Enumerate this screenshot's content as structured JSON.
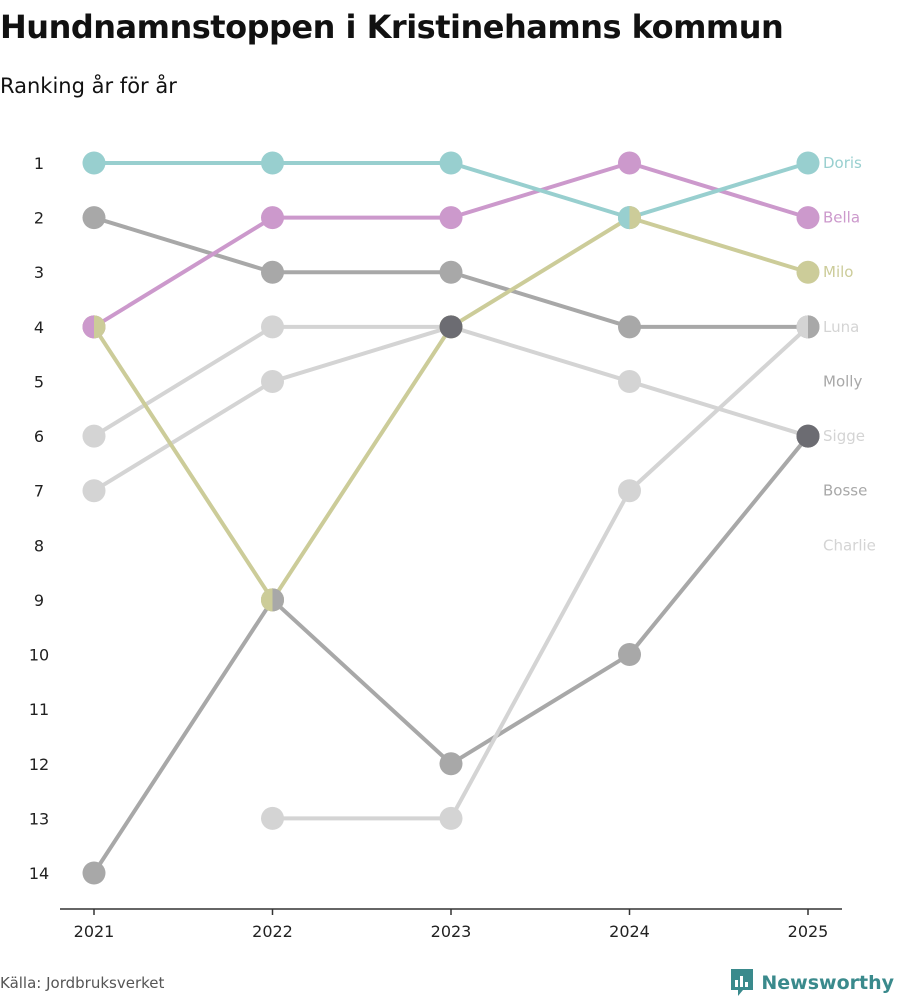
{
  "header": {
    "title": "Hundnamnstoppen i Kristinehamns kommun",
    "subtitle": "Ranking år för år"
  },
  "footer": {
    "source": "Källa: Jordbruksverket",
    "brand": "Newsworthy"
  },
  "colors": {
    "doris": "#98cfcf",
    "bella": "#cc99cc",
    "milo": "#cccc99",
    "luna": "#a8a8a8",
    "molly": "#a8a8a8",
    "sigge": "#d4d4d4",
    "bosse": "#a8a8a8",
    "charlie": "#d4d4d4",
    "overlap": "#6c6c72",
    "axis": "#333333",
    "brand": "#3a8a8c"
  },
  "chart_data": {
    "type": "line",
    "title": "Hundnamnstoppen i Kristinehamns kommun",
    "subtitle": "Ranking år för år",
    "x": [
      "2021",
      "2022",
      "2023",
      "2024",
      "2025"
    ],
    "y_ticks": [
      "1",
      "2",
      "3",
      "4",
      "5",
      "6",
      "7",
      "8",
      "9",
      "10",
      "11",
      "12",
      "13",
      "14"
    ],
    "ylim": [
      1,
      14
    ],
    "y_reversed": true,
    "series": [
      {
        "name": "Charlie",
        "color_key": "charlie",
        "values": [
          6,
          4,
          4,
          5,
          6
        ]
      },
      {
        "name": "Bosse",
        "color_key": "bosse",
        "values": [
          14,
          9,
          12,
          10,
          6
        ]
      },
      {
        "name": "Sigge",
        "color_key": "sigge",
        "values": [
          7,
          5,
          4,
          null,
          null
        ]
      },
      {
        "name": "Molly",
        "color_key": "molly",
        "values": [
          null,
          null,
          null,
          null,
          null
        ]
      },
      {
        "name": "Luna",
        "color_key": "luna",
        "values": [
          2,
          3,
          3,
          4,
          4
        ]
      },
      {
        "name": "Sigge",
        "color_key": "sigge",
        "values": [
          null,
          13,
          13,
          7,
          4
        ]
      },
      {
        "name": "Milo",
        "color_key": "milo",
        "values": [
          4,
          9,
          4,
          2,
          3
        ]
      },
      {
        "name": "Bella",
        "color_key": "bella",
        "values": [
          4,
          2,
          2,
          1,
          2
        ]
      },
      {
        "name": "Doris",
        "color_key": "doris",
        "values": [
          1,
          1,
          1,
          2,
          1
        ]
      }
    ],
    "end_labels": [
      {
        "name": "Doris",
        "rank": 1,
        "color_key": "doris"
      },
      {
        "name": "Bella",
        "rank": 2,
        "color_key": "bella"
      },
      {
        "name": "Milo",
        "rank": 3,
        "color_key": "milo"
      },
      {
        "name": "Luna",
        "rank": 4,
        "color_key": "sigge"
      },
      {
        "name": "Molly",
        "rank": 5,
        "color_key": "luna"
      },
      {
        "name": "Sigge",
        "rank": 6,
        "color_key": "sigge"
      },
      {
        "name": "Bosse",
        "rank": 7,
        "color_key": "luna"
      },
      {
        "name": "Charlie",
        "rank": 8,
        "color_key": "sigge"
      }
    ],
    "overlap_markers": [
      {
        "year": "2023",
        "rank": 4,
        "color_key": "overlap"
      },
      {
        "year": "2025",
        "rank": 6,
        "color_key": "overlap"
      }
    ],
    "split_markers": [
      {
        "year": "2021",
        "rank": 4,
        "left_color_key": "bella",
        "right_color_key": "milo"
      },
      {
        "year": "2022",
        "rank": 9,
        "left_color_key": "milo",
        "right_color_key": "luna"
      },
      {
        "year": "2024",
        "rank": 2,
        "left_color_key": "doris",
        "right_color_key": "milo"
      },
      {
        "year": "2025",
        "rank": 4,
        "left_color_key": "sigge",
        "right_color_key": "luna"
      }
    ]
  }
}
